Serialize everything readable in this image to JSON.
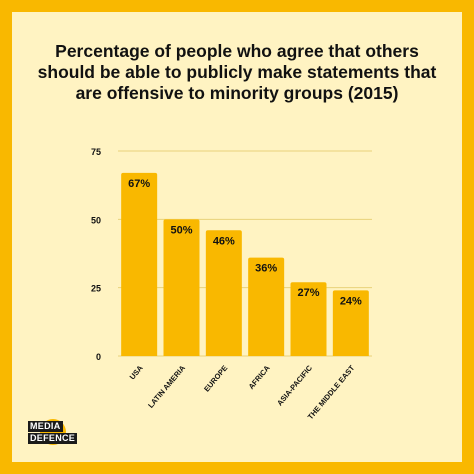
{
  "chart_data": {
    "type": "bar",
    "title_lines": [
      "Percentage of people who agree that others",
      "should be able to publicly make statements that",
      "are offensive to minority groups (2015)"
    ],
    "categories": [
      "USA",
      "LATIN AMERIA",
      "EUROPE",
      "AFRICA",
      "ASIA-PACIFIC",
      "THE MIDDLE EAST"
    ],
    "values": [
      67,
      50,
      46,
      36,
      27,
      24
    ],
    "data_labels": [
      "67%",
      "50%",
      "46%",
      "36%",
      "27%",
      "24%"
    ],
    "y_ticks": [
      0,
      25,
      50,
      75
    ],
    "ylim": [
      0,
      75
    ],
    "grid": true,
    "colors": {
      "bar": "#F9B800",
      "background": "#FFF3C2",
      "border": "#F9B800",
      "gridline": "#E8D27A",
      "text": "#111111"
    }
  },
  "logo": {
    "line1": "MEDIA",
    "line2": "DEFENCE"
  }
}
